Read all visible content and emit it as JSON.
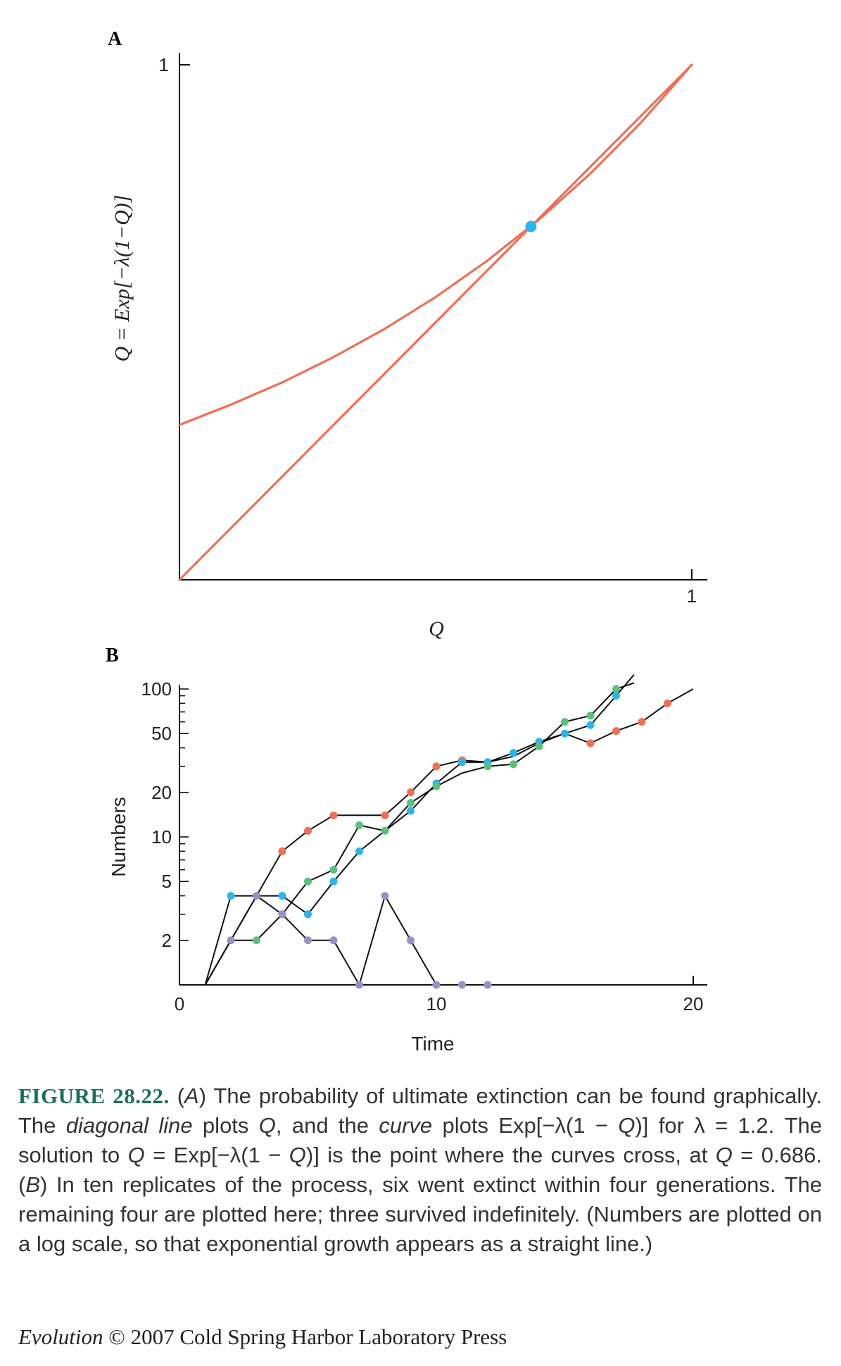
{
  "chart_data": [
    {
      "panel": "A",
      "type": "line",
      "title": "",
      "xlabel": "Q",
      "ylabel": "Q = Exp[−λ(1−Q)]",
      "xlim": [
        0,
        1
      ],
      "ylim": [
        0,
        1
      ],
      "x_ticks": [
        "1"
      ],
      "y_ticks": [
        "1"
      ],
      "lambda": 1.2,
      "series": [
        {
          "kind": "diagonal",
          "color": "#ef6f56",
          "x": [
            0,
            1
          ],
          "y": [
            0,
            1
          ]
        },
        {
          "kind": "curve",
          "color": "#ef6f56",
          "x": [
            0,
            0.1,
            0.2,
            0.3,
            0.4,
            0.5,
            0.6,
            0.7,
            0.8,
            0.9,
            1.0
          ],
          "y": [
            0.301,
            0.34,
            0.383,
            0.432,
            0.487,
            0.549,
            0.619,
            0.698,
            0.787,
            0.887,
            1.0
          ]
        }
      ],
      "highlight_point": {
        "x": 0.686,
        "y": 0.686,
        "color": "#2db5ea"
      }
    },
    {
      "panel": "B",
      "type": "line",
      "title": "",
      "xlabel": "Time",
      "ylabel": "Numbers",
      "xlim": [
        0,
        20
      ],
      "y_scale": "log",
      "ylim": [
        1,
        100
      ],
      "x_ticks": [
        "0",
        "10",
        "20"
      ],
      "y_ticks": [
        "100",
        "50",
        "20",
        "10",
        "5",
        "2"
      ],
      "y_tick_values": [
        100,
        50,
        20,
        10,
        5,
        2
      ],
      "series": [
        {
          "color": "#ef6f56",
          "x": [
            1,
            4,
            5,
            6,
            8,
            9,
            10,
            11,
            12,
            13,
            14,
            15,
            16,
            17,
            18,
            19,
            20
          ],
          "y": [
            1,
            8,
            11,
            14,
            14,
            20,
            30,
            33,
            32,
            35,
            43,
            50,
            43,
            52,
            60,
            80,
            100
          ],
          "markers": [
            false,
            true,
            true,
            true,
            true,
            true,
            true,
            true,
            true,
            false,
            false,
            false,
            true,
            true,
            true,
            true,
            false
          ]
        },
        {
          "color": "#2db5ea",
          "x": [
            1,
            2,
            3,
            4,
            5,
            6,
            7,
            8,
            9,
            10,
            11,
            12,
            13,
            14,
            15,
            16,
            17,
            17.7
          ],
          "y": [
            1,
            4,
            4,
            4,
            3,
            5,
            8,
            11,
            15,
            23,
            32,
            32,
            37,
            44,
            50,
            57,
            90,
            125
          ],
          "markers": [
            false,
            true,
            false,
            true,
            true,
            true,
            true,
            false,
            true,
            true,
            true,
            true,
            true,
            true,
            true,
            true,
            true,
            false
          ]
        },
        {
          "color": "#5cbf7e",
          "x": [
            1,
            2,
            3,
            4,
            5,
            6,
            7,
            8,
            9,
            10,
            11,
            12,
            13,
            14,
            15,
            16,
            17,
            17.7
          ],
          "y": [
            1,
            2,
            2,
            3,
            5,
            6,
            12,
            11,
            17,
            22,
            27,
            30,
            31,
            41,
            60,
            66,
            100,
            110
          ],
          "markers": [
            false,
            false,
            true,
            false,
            true,
            true,
            true,
            true,
            true,
            true,
            false,
            true,
            true,
            true,
            true,
            true,
            true,
            false
          ]
        },
        {
          "color": "#9b8fc9",
          "x": [
            1,
            2,
            3,
            4,
            5,
            6,
            7,
            8,
            9,
            10,
            11,
            12
          ],
          "y": [
            1,
            2,
            4,
            3,
            2,
            2,
            1,
            4,
            2,
            1,
            1,
            1
          ],
          "markers": [
            false,
            true,
            true,
            true,
            true,
            true,
            true,
            true,
            true,
            true,
            true,
            true
          ]
        }
      ]
    }
  ],
  "panels": {
    "a_letter": "A",
    "b_letter": "B"
  },
  "caption": {
    "figure_label": "FIGURE 28.22.",
    "html": " (<i>A</i>) The probability of ultimate extinction can be found graphically. The <i>diagonal line</i> plots <i>Q</i>, and the <i>curve</i> plots Exp[−λ(1 − <i>Q</i>)] for λ = 1.2. The solution to <i>Q</i> = Exp[−λ(1 − <i>Q</i>)] is the point where the curves cross, at <i>Q</i> = 0.686. (<i>B</i>) In ten replicates of the process, six went extinct within four generations. The remaining four are plotted here; three survived indefinitely. (Numbers are plotted on a log scale, so that exponential growth appears as a straight line.)"
  },
  "credit": {
    "book": "Evolution",
    "rest": " © 2007 Cold Spring Harbor Laboratory Press"
  }
}
